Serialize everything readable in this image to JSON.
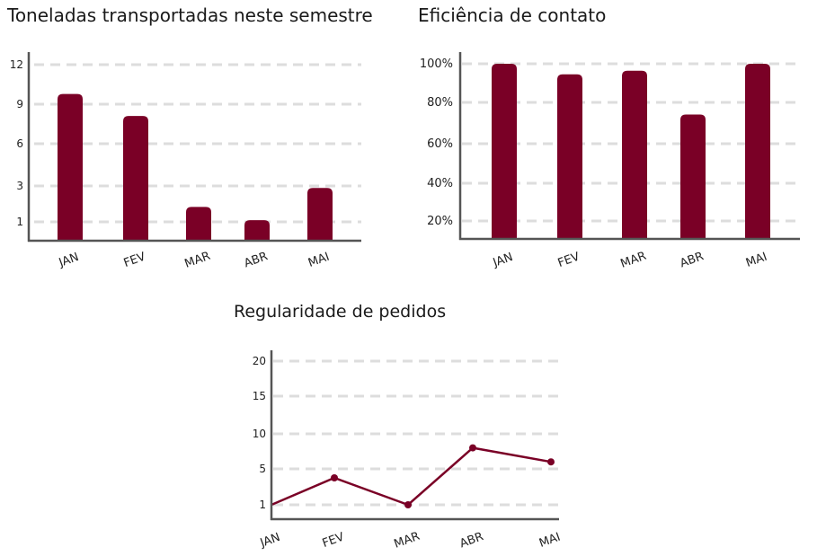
{
  "charts": [
    {
      "type": "bar",
      "title": "Toneladas transportadas neste semestre",
      "categories": [
        "JAN",
        "FEV",
        "MAR",
        "ABR",
        "MAI"
      ],
      "values": [
        10,
        8.5,
        2.3,
        1.4,
        3.6
      ],
      "y_ticks": [
        "12",
        "9",
        "6",
        "3",
        "1"
      ],
      "color": "#7a0026",
      "grid": true
    },
    {
      "type": "bar",
      "title": "Eficiência de contato",
      "categories": [
        "JAN",
        "FEV",
        "MAR",
        "ABR",
        "MAI"
      ],
      "values": [
        100,
        94,
        96,
        71,
        100
      ],
      "y_ticks": [
        "100%",
        "80%",
        "60%",
        "40%",
        "20%"
      ],
      "color": "#7a0026",
      "grid": true
    },
    {
      "type": "line",
      "title": "Regularidade de pedidos",
      "categories": [
        "JAN",
        "FEV",
        "MAR",
        "ABR",
        "MAI"
      ],
      "values": [
        1,
        4,
        1,
        8,
        6
      ],
      "y_ticks": [
        "20",
        "15",
        "10",
        "5",
        "1"
      ],
      "color": "#7a0026",
      "grid": true
    }
  ]
}
